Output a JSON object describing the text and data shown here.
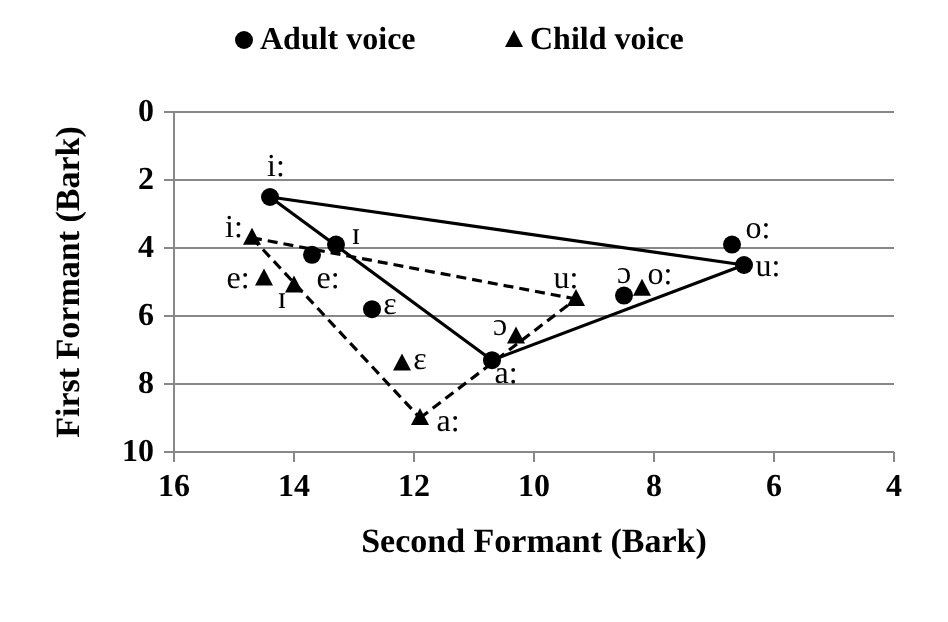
{
  "chart_data": {
    "type": "scatter",
    "xlabel": "Second Formant (Bark)",
    "ylabel": "First Formant (Bark)",
    "xlim": [
      16,
      4
    ],
    "xticks": [
      16,
      14,
      12,
      10,
      8,
      6,
      4
    ],
    "ylim": [
      10,
      0
    ],
    "yticks": [
      0,
      2,
      4,
      6,
      8,
      10
    ],
    "grid": "y",
    "legend": "top",
    "series": [
      {
        "name": "Adult voice",
        "marker": "circle",
        "color": "#000000",
        "x": [
          14.4,
          13.3,
          13.7,
          12.7,
          10.7,
          6.7,
          6.5,
          8.5
        ],
        "values": [
          2.5,
          3.9,
          4.2,
          5.8,
          7.3,
          3.9,
          4.5,
          5.4
        ]
      },
      {
        "name": "Child voice",
        "marker": "triangle",
        "color": "#000000",
        "x": [
          14.7,
          14.5,
          14.0,
          12.2,
          11.9,
          10.3,
          9.3,
          8.2
        ],
        "values": [
          3.7,
          4.9,
          5.1,
          7.4,
          9.0,
          6.6,
          5.5,
          5.2
        ]
      },
      {
        "type": "line",
        "marker": "none",
        "line_style": "solid",
        "color": "#000000",
        "x": [
          14.4,
          6.5
        ],
        "values": [
          2.5,
          4.5
        ]
      },
      {
        "type": "line",
        "marker": "none",
        "line_style": "solid",
        "color": "#000000",
        "x": [
          10.7,
          6.5
        ],
        "values": [
          7.3,
          4.5
        ]
      },
      {
        "type": "line",
        "marker": "none",
        "line_style": "solid",
        "color": "#000000",
        "x": [
          14.4,
          10.7
        ],
        "values": [
          2.5,
          7.3
        ]
      },
      {
        "type": "line",
        "marker": "none",
        "line_style": "dashed",
        "color": "#000000",
        "x": [
          14.7,
          9.3
        ],
        "values": [
          3.7,
          5.5
        ]
      },
      {
        "type": "line",
        "marker": "none",
        "line_style": "dashed",
        "color": "#000000",
        "x": [
          11.9,
          9.3
        ],
        "values": [
          9.0,
          5.5
        ]
      },
      {
        "type": "line",
        "marker": "none",
        "line_style": "dashed",
        "color": "#000000",
        "x": [
          14.7,
          11.9
        ],
        "values": [
          3.7,
          9.0
        ]
      }
    ],
    "annotations": [
      {
        "text": "i:",
        "x": 14.4,
        "y": 2.5
      },
      {
        "text": "ɪ",
        "x": 13.3,
        "y": 3.9
      },
      {
        "text": "e:",
        "x": 13.7,
        "y": 4.2
      },
      {
        "text": "ɛ",
        "x": 12.7,
        "y": 5.8
      },
      {
        "text": "a:",
        "x": 10.7,
        "y": 7.3
      },
      {
        "text": "o:",
        "x": 6.7,
        "y": 3.9
      },
      {
        "text": "u:",
        "x": 6.5,
        "y": 4.5
      },
      {
        "text": "ɔ",
        "x": 8.5,
        "y": 5.4
      },
      {
        "text": "i:",
        "x": 14.7,
        "y": 3.7
      },
      {
        "text": "e:",
        "x": 14.5,
        "y": 4.9
      },
      {
        "text": "ɪ",
        "x": 14.0,
        "y": 5.1
      },
      {
        "text": "ɛ",
        "x": 12.2,
        "y": 7.4
      },
      {
        "text": "a:",
        "x": 11.9,
        "y": 9.0
      },
      {
        "text": "ɔ",
        "x": 10.3,
        "y": 6.6
      },
      {
        "text": "u:",
        "x": 9.3,
        "y": 5.5
      },
      {
        "text": "o:",
        "x": 8.2,
        "y": 5.2
      }
    ]
  }
}
